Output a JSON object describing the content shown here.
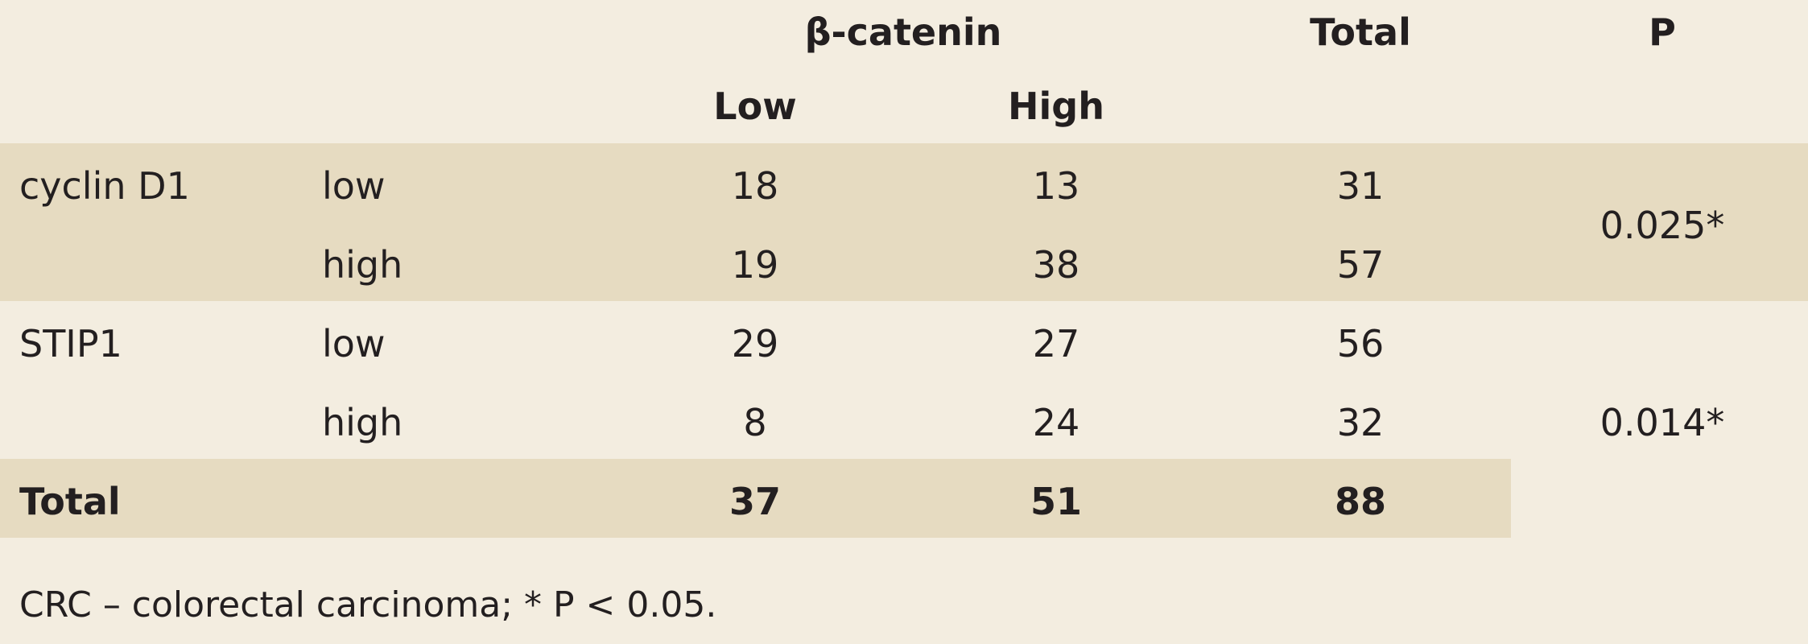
{
  "table": {
    "header": {
      "group_label": "β-catenin",
      "total_label": "Total",
      "p_label": "P",
      "sub_low": "Low",
      "sub_high": "High"
    },
    "rows": [
      {
        "group": "cyclin D1",
        "level": "low",
        "low": "18",
        "high": "13",
        "total": "31"
      },
      {
        "group": "",
        "level": "high",
        "low": "19",
        "high": "38",
        "total": "57"
      },
      {
        "group": "STIP1",
        "level": "low",
        "low": "29",
        "high": "27",
        "total": "56"
      },
      {
        "group": "",
        "level": "high",
        "low": "8",
        "high": "24",
        "total": "32"
      }
    ],
    "p_values": {
      "cyclin": "0.025*",
      "stip": "0.014*"
    },
    "total_row": {
      "label": "Total",
      "low": "37",
      "high": "51",
      "total": "88"
    }
  },
  "footnote": "CRC – colorectal carcinoma; * P < 0.05."
}
